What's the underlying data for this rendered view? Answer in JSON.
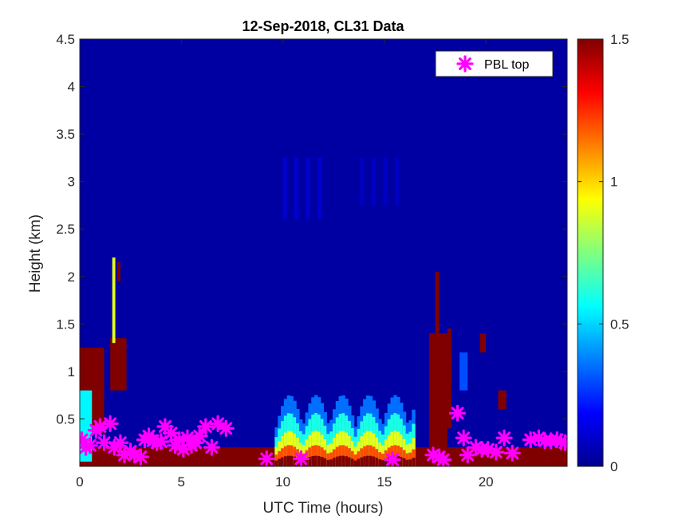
{
  "chart_data": {
    "type": "heatmap",
    "title": "12-Sep-2018, CL31 Data",
    "xlabel": "UTC Time (hours)",
    "ylabel": "Height (km)",
    "xlim": [
      0,
      24
    ],
    "ylim": [
      0,
      4.5
    ],
    "xticks": [
      0,
      5,
      10,
      15,
      20
    ],
    "yticks": [
      0.5,
      1,
      1.5,
      2,
      2.5,
      3,
      3.5,
      4,
      4.5
    ],
    "colorbar": {
      "colormap": "jet",
      "range": [
        0,
        1.5
      ],
      "ticks": [
        0,
        0.5,
        1,
        1.5
      ]
    },
    "background_value": 0.05,
    "grid": false,
    "legend": {
      "location": "top-right",
      "entries": [
        "PBL top"
      ]
    },
    "features": [
      {
        "kind": "low_layer",
        "x0": 0.0,
        "x1": 24.0,
        "top": 0.2,
        "value": 1.5
      },
      {
        "kind": "cloud_block",
        "x0": 0.0,
        "x1": 1.2,
        "bottom": 0.35,
        "top": 1.25,
        "value": 1.5
      },
      {
        "kind": "cloud_block",
        "x0": 0.0,
        "x1": 0.6,
        "bottom": 0.05,
        "top": 0.8,
        "value": 0.55
      },
      {
        "kind": "cloud_block",
        "x0": 1.5,
        "x1": 2.3,
        "bottom": 0.8,
        "top": 1.35,
        "value": 1.5
      },
      {
        "kind": "cloud_block",
        "x0": 1.6,
        "x1": 1.75,
        "bottom": 1.3,
        "top": 2.2,
        "value": 0.9
      },
      {
        "kind": "cloud_block",
        "x0": 1.85,
        "x1": 2.0,
        "bottom": 1.95,
        "top": 2.15,
        "value": 1.5
      },
      {
        "kind": "plume",
        "x0": 9.6,
        "x1": 16.5,
        "top": 0.75,
        "value": 1.2
      },
      {
        "kind": "cloud_block",
        "x0": 17.2,
        "x1": 18.1,
        "bottom": 0.2,
        "top": 1.4,
        "value": 1.5
      },
      {
        "kind": "cloud_block",
        "x0": 17.5,
        "x1": 17.7,
        "bottom": 1.4,
        "top": 2.05,
        "value": 1.5
      },
      {
        "kind": "cloud_block",
        "x0": 18.1,
        "x1": 18.3,
        "bottom": 0.4,
        "top": 1.45,
        "value": 1.5
      },
      {
        "kind": "cloud_block",
        "x0": 19.7,
        "x1": 20.0,
        "bottom": 1.2,
        "top": 1.4,
        "value": 1.5
      },
      {
        "kind": "cloud_block",
        "x0": 20.6,
        "x1": 21.0,
        "bottom": 0.6,
        "top": 0.8,
        "value": 1.5
      },
      {
        "kind": "cloud_block",
        "x0": 18.7,
        "x1": 19.1,
        "bottom": 0.8,
        "top": 1.2,
        "value": 0.3
      },
      {
        "kind": "faint_layer",
        "x0": 10.0,
        "x1": 12.0,
        "bottom": 2.6,
        "top": 3.25,
        "value": 0.12
      },
      {
        "kind": "faint_layer",
        "x0": 13.8,
        "x1": 15.8,
        "bottom": 2.75,
        "top": 3.25,
        "value": 0.1
      }
    ],
    "series": [
      {
        "name": "PBL top",
        "marker": "asterisk",
        "color": "#ff00ff",
        "x": [
          0.1,
          0.3,
          0.5,
          0.8,
          1.0,
          1.2,
          1.5,
          1.7,
          2.0,
          2.2,
          2.5,
          2.7,
          3.0,
          3.2,
          3.4,
          3.6,
          3.8,
          4.0,
          4.2,
          4.5,
          4.7,
          4.9,
          5.1,
          5.3,
          5.5,
          5.7,
          5.9,
          6.2,
          6.5,
          6.8,
          7.2,
          9.2,
          10.9,
          15.4,
          17.4,
          17.7,
          17.9,
          18.6,
          18.9,
          19.1,
          19.5,
          19.8,
          20.1,
          20.5,
          20.9,
          21.3,
          22.2,
          22.6,
          22.9,
          23.2,
          23.5,
          23.7,
          23.9
        ],
        "y": [
          0.28,
          0.2,
          0.22,
          0.38,
          0.42,
          0.25,
          0.45,
          0.2,
          0.25,
          0.12,
          0.16,
          0.12,
          0.1,
          0.28,
          0.32,
          0.27,
          0.25,
          0.26,
          0.42,
          0.35,
          0.22,
          0.28,
          0.18,
          0.3,
          0.22,
          0.25,
          0.32,
          0.42,
          0.2,
          0.45,
          0.4,
          0.08,
          0.08,
          0.07,
          0.12,
          0.1,
          0.07,
          0.56,
          0.3,
          0.12,
          0.2,
          0.18,
          0.18,
          0.15,
          0.3,
          0.14,
          0.28,
          0.3,
          0.27,
          0.27,
          0.28,
          0.26,
          0.25
        ]
      }
    ]
  }
}
